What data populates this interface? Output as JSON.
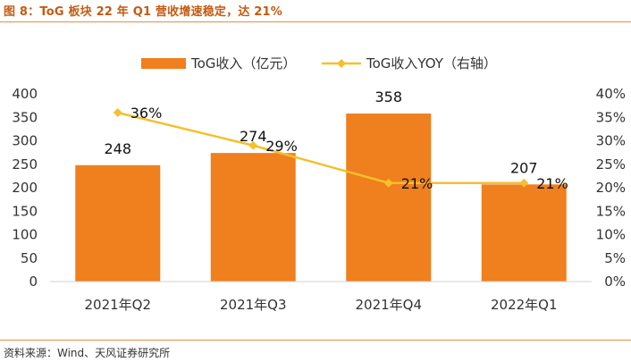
{
  "title": "图 8：ToG 板块 22 年 Q1 营收增速稳定，达 21%",
  "source": "资料来源：Wind、天风证券研究所",
  "colors": {
    "bar": "#f07f1e",
    "line": "#f5c02c",
    "title": "#c55a11"
  },
  "chart_data": {
    "type": "bar",
    "categories": [
      "2021年Q2",
      "2021年Q3",
      "2021年Q4",
      "2022年Q1"
    ],
    "series": [
      {
        "name": "ToG收入（亿元）",
        "type": "bar",
        "axis": "left",
        "values": [
          248,
          274,
          358,
          207
        ],
        "labels": [
          "248",
          "274",
          "358",
          "207"
        ]
      },
      {
        "name": "ToG收入YOY（右轴）",
        "type": "line",
        "axis": "right",
        "values": [
          0.36,
          0.29,
          0.21,
          0.21
        ],
        "labels": [
          "36%",
          "29%",
          "21%",
          "21%"
        ]
      }
    ],
    "ylim": [
      0,
      400
    ],
    "yticks": [
      "0",
      "50",
      "100",
      "150",
      "200",
      "250",
      "300",
      "350",
      "400"
    ],
    "y2lim": [
      0,
      0.4
    ],
    "y2ticks": [
      "0%",
      "5%",
      "10%",
      "15%",
      "20%",
      "25%",
      "30%",
      "35%",
      "40%"
    ],
    "legend_position": "top-center",
    "grid": false
  }
}
